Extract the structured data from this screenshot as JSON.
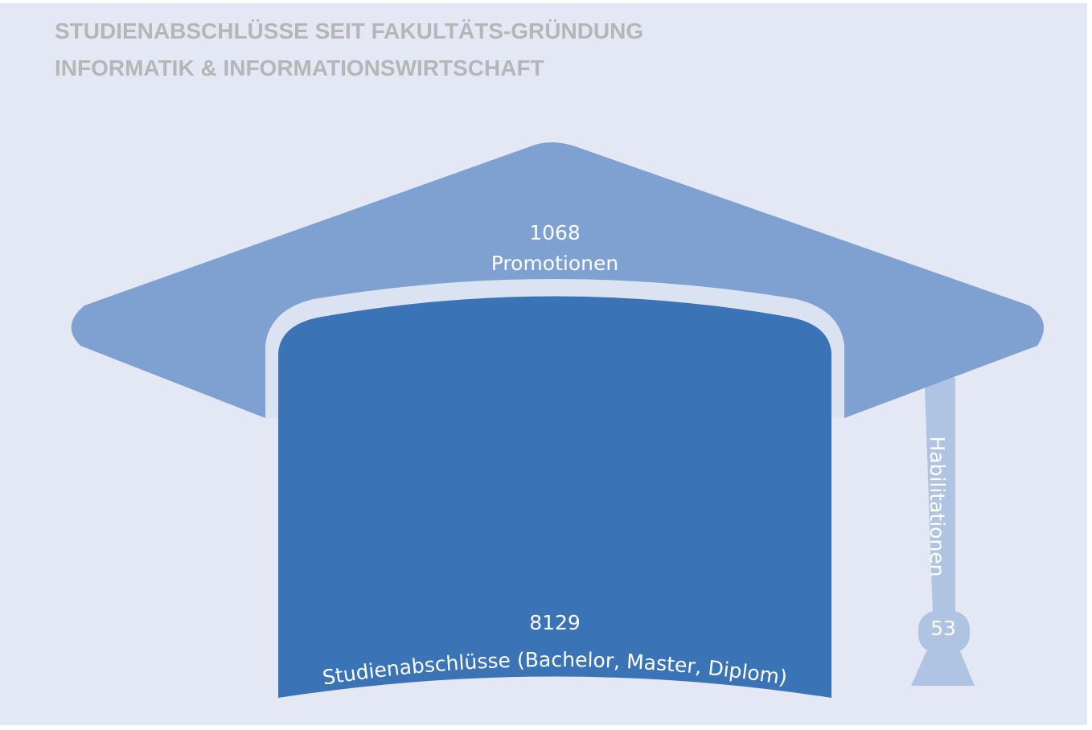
{
  "title": [
    "STUDIENABSCHLÜSSE SEIT FAKULTÄTS-GRÜNDUNG",
    "INFORMATIK & INFORMATIONSWIRTSCHAFT"
  ],
  "items": [
    {
      "value": 1068,
      "label": "Promotionen"
    },
    {
      "value": 8129,
      "label": "Studienabschlüsse (Bachelor, Master, Diplom)"
    },
    {
      "value": 53,
      "label": "Habilitationen"
    }
  ]
}
